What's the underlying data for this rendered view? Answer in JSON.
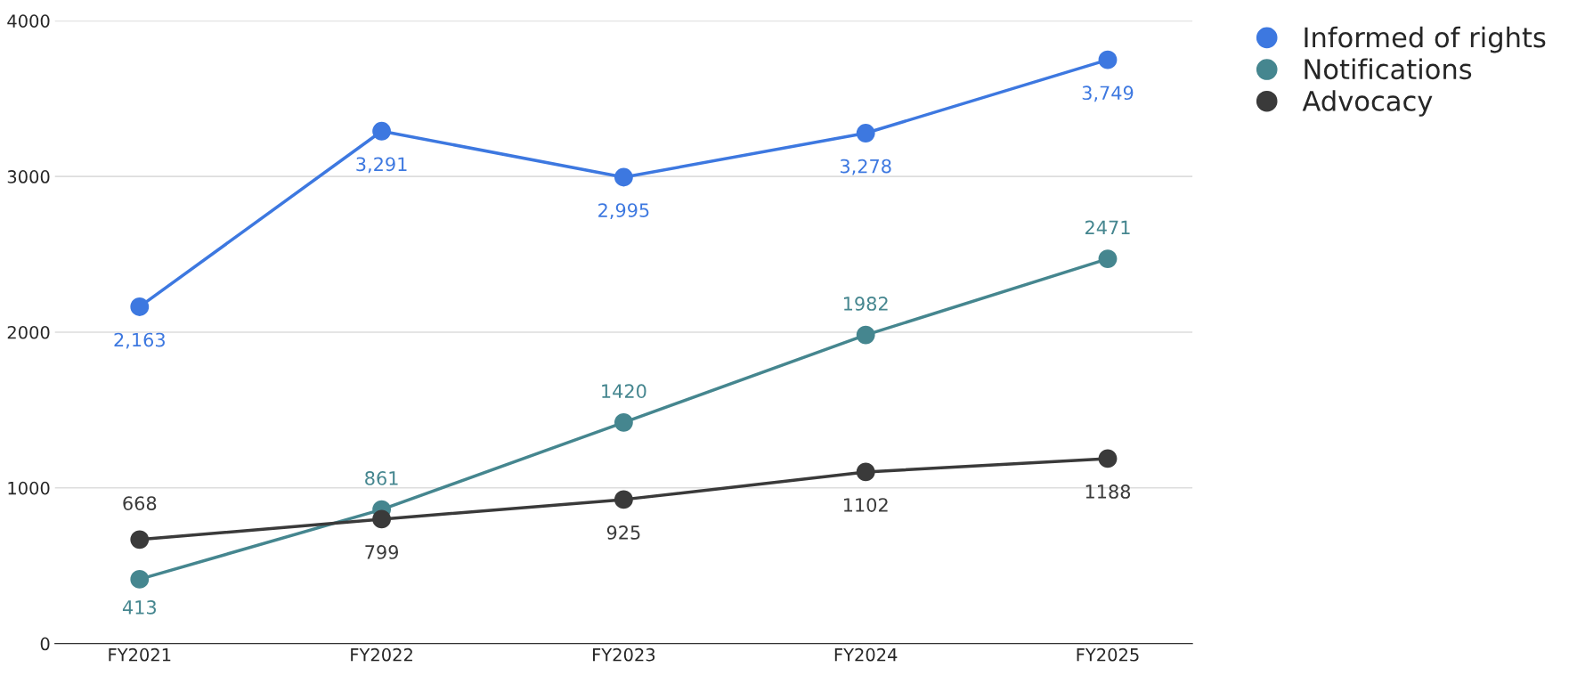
{
  "chart_data": {
    "type": "line",
    "categories": [
      "FY2021",
      "FY2022",
      "FY2023",
      "FY2024",
      "FY2025"
    ],
    "series": [
      {
        "name": "Informed of rights",
        "color": "#3d78e0",
        "values": [
          2163,
          3291,
          2995,
          3278,
          3749
        ],
        "value_labels": [
          "2,163",
          "3,291",
          "2,995",
          "3,278",
          "3,749"
        ]
      },
      {
        "name": "Notifications",
        "color": "#45868f",
        "values": [
          413,
          861,
          1420,
          1982,
          2471
        ],
        "value_labels": [
          "413",
          "861",
          "1420",
          "1982",
          "2471"
        ]
      },
      {
        "name": "Advocacy",
        "color": "#3a3a3a",
        "values": [
          668,
          799,
          925,
          1102,
          1188
        ],
        "value_labels": [
          "668",
          "799",
          "925",
          "1102",
          "1188"
        ]
      }
    ],
    "ylim": [
      0,
      4000
    ],
    "yticks": [
      0,
      1000,
      2000,
      3000,
      4000
    ],
    "grid": "y",
    "legend": "top right",
    "marker": "circle",
    "line_style": "solid"
  }
}
